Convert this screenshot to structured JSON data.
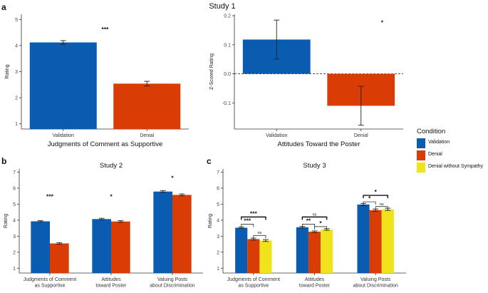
{
  "figure": {
    "panel_labels": [
      "a",
      "b",
      "c"
    ],
    "study1_title": "Study 1",
    "colors": {
      "validation": "#0a5cb0",
      "denial": "#d93d05",
      "denial_ws": "#f0e31b"
    }
  },
  "legend": {
    "title": "Condition",
    "items": [
      {
        "label": "Validation",
        "color": "#0a5cb0"
      },
      {
        "label": "Denial",
        "color": "#d93d05"
      },
      {
        "label": "Denial without Sympathy",
        "color": "#f0e31b"
      }
    ]
  },
  "chart_data": [
    {
      "id": "a1",
      "type": "bar",
      "title": "",
      "categories": [
        "Validation",
        "Denial"
      ],
      "values": [
        4.12,
        2.54
      ],
      "errors": [
        0.07,
        0.09
      ],
      "colors": [
        "#0a5cb0",
        "#d93d05"
      ],
      "xlabel": "Judgments of Comment as Supportive",
      "ylabel": "Rating",
      "ylim": [
        0.8,
        5.2
      ],
      "yticks": [
        1,
        2,
        3,
        4,
        5
      ],
      "grid": false,
      "annotations": [
        {
          "text": "***",
          "x": 0.5,
          "y": 4.55
        }
      ]
    },
    {
      "id": "a2",
      "type": "bar",
      "title": "",
      "categories": [
        "Validation",
        "Denial"
      ],
      "values": [
        0.118,
        -0.11
      ],
      "errors": [
        0.067,
        0.067
      ],
      "colors": [
        "#0a5cb0",
        "#d93d05"
      ],
      "xlabel": "Attitudes Toward the Poster",
      "ylabel": "Z-Scored Rating",
      "ylim": [
        -0.19,
        0.205
      ],
      "yticks": [
        -0.1,
        0.0,
        0.1,
        0.2
      ],
      "ytick_labels": [
        "-0.1",
        "0.0",
        "0.1",
        "0.2"
      ],
      "reference_line": 0,
      "grid": false,
      "annotations": [
        {
          "text": "*",
          "x": 1.25,
          "y": 0.17
        }
      ]
    },
    {
      "id": "b",
      "type": "bar",
      "title": "Study 2",
      "categories": [
        "Judgments of Comment\nas Supportive",
        "Attitudes\ntoward Poster",
        "Valuing Posts\nabout Discrimination"
      ],
      "series": [
        {
          "name": "Validation",
          "color": "#0a5cb0",
          "values": [
            3.93,
            4.07,
            5.79
          ],
          "errors": [
            0.04,
            0.05,
            0.06
          ]
        },
        {
          "name": "Denial",
          "color": "#d93d05",
          "values": [
            2.55,
            3.92,
            5.58
          ],
          "errors": [
            0.05,
            0.05,
            0.06
          ]
        }
      ],
      "ylabel": "Rating",
      "xlabel": "",
      "ylim": [
        0.7,
        7.2
      ],
      "yticks": [
        1,
        2,
        3,
        4,
        5,
        6,
        7
      ],
      "grid": false,
      "annotations": [
        {
          "text": "***",
          "group": 0,
          "y": 5.35
        },
        {
          "text": "*",
          "group": 1,
          "y": 5.35
        },
        {
          "text": "*",
          "group": 2,
          "y": 6.5
        }
      ]
    },
    {
      "id": "c",
      "type": "bar",
      "title": "Study 3",
      "categories": [
        "Judgments of Comment\nas Supportive",
        "Attitudes\ntoward Poster",
        "Valuing Posts\nabout Discrimination"
      ],
      "series": [
        {
          "name": "Validation",
          "color": "#0a5cb0",
          "values": [
            3.53,
            3.56,
            4.98
          ],
          "errors": [
            0.05,
            0.05,
            0.07
          ]
        },
        {
          "name": "Denial",
          "color": "#d93d05",
          "values": [
            2.82,
            3.28,
            4.63
          ],
          "errors": [
            0.06,
            0.05,
            0.07
          ]
        },
        {
          "name": "Denial without Sympathy",
          "color": "#f0e31b",
          "values": [
            2.73,
            3.42,
            4.68
          ],
          "errors": [
            0.06,
            0.05,
            0.07
          ]
        }
      ],
      "ylabel": "Rating",
      "xlabel": "",
      "ylim": [
        0.7,
        7.2
      ],
      "yticks": [
        1,
        2,
        3,
        4,
        5,
        6,
        7
      ],
      "grid": false,
      "comparisons": [
        {
          "group": 0,
          "from": 0,
          "to": 2,
          "y": 4.2,
          "label": "***"
        },
        {
          "group": 0,
          "from": 0,
          "to": 1,
          "y": 3.75,
          "label": "***"
        },
        {
          "group": 0,
          "from": 1,
          "to": 2,
          "y": 3.05,
          "label": "ns"
        },
        {
          "group": 1,
          "from": 0,
          "to": 2,
          "y": 4.2,
          "label": "ns"
        },
        {
          "group": 1,
          "from": 0,
          "to": 1,
          "y": 3.75,
          "label": "**"
        },
        {
          "group": 1,
          "from": 1,
          "to": 2,
          "y": 3.6,
          "label": "*"
        },
        {
          "group": 2,
          "from": 0,
          "to": 2,
          "y": 5.55,
          "label": "*"
        },
        {
          "group": 2,
          "from": 0,
          "to": 1,
          "y": 5.15,
          "label": "*"
        },
        {
          "group": 2,
          "from": 1,
          "to": 2,
          "y": 4.85,
          "label": "ns"
        }
      ]
    }
  ]
}
